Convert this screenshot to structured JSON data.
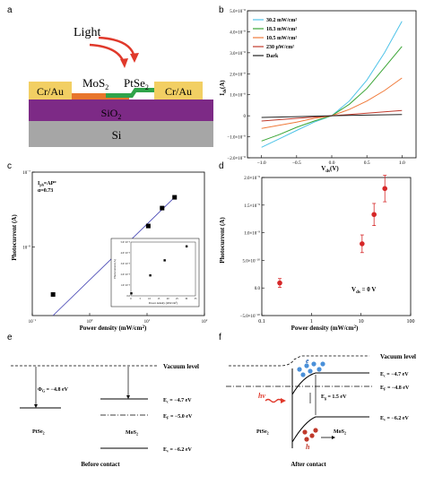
{
  "panels": {
    "a": {
      "label": "a",
      "light_label": "Light",
      "mos2_label": "MoS",
      "mos2_sub": "2",
      "ptse2_label": "PtSe",
      "ptse2_sub": "2",
      "left_electrode": "Cr/Au",
      "right_electrode": "Cr/Au",
      "sio2_label": "SiO",
      "sio2_sub": "2",
      "si_label": "Si",
      "colors": {
        "electrode": "#f2cf63",
        "mos2": "#e8762c",
        "ptse2": "#2fa34a",
        "sio2": "#7d2a86",
        "si": "#a6a6a6",
        "light": "#e0392b"
      }
    },
    "b": {
      "label": "b",
      "ylabel": "I",
      "ylabel_sub": "ds",
      "ylabel_unit": "(A)",
      "xlabel": "V",
      "xlabel_sub": "ds",
      "xlabel_unit": "(V)",
      "ytick_exp_labels": [
        "5.0×10",
        "4.0×10",
        "3.0×10",
        "2.0×10",
        "1.0×10",
        "0",
        "−1.0×10",
        "−2.0×10"
      ],
      "ytick_exp": "−6",
      "xtick_labels": [
        "−1.0",
        "−0.5",
        "0.0",
        "0.5",
        "1.0"
      ]
    },
    "c": {
      "label": "c",
      "ylabel": "Photocurrent (A)",
      "xlabel": "Power density (mW/cm",
      "xlabel_tail": "2",
      "xlabel_end": ")",
      "annot1": "I",
      "annot1_sub": "ph",
      "annot1_rest": "=AP",
      "annot1_sup": "α",
      "annot2": "α=0.73",
      "ytick_labels": [
        "10",
        "10"
      ],
      "ytick_sups": [
        "−7",
        "−8"
      ],
      "xtick_labels": [
        "10",
        "10",
        "10",
        "10"
      ],
      "xtick_sups": [
        "−1",
        "0",
        "1",
        "2"
      ],
      "inset": {
        "xlabel": "Power density (mW/cm²)",
        "ylabel": "Photocurrent (A)",
        "xtick_labels": [
          "0",
          "5",
          "10",
          "15",
          "20",
          "25",
          "30",
          "35"
        ],
        "ytick_labels": [
          "5.0×10⁻⁸",
          "4.0×10⁻⁸",
          "3.0×10⁻⁸",
          "2.0×10⁻⁸",
          "1.0×10⁻⁸",
          "0.0"
        ]
      }
    },
    "d": {
      "label": "d",
      "ylabel": "Photocurrent (A)",
      "xlabel": "Power density (mW/cm",
      "xlabel_tail": "2",
      "xlabel_end": ")",
      "vds_label": "V",
      "vds_sub": "ds",
      "vds_value": " = 0 V",
      "ytick_labels": [
        "2.0×10",
        "1.5×10",
        "1.0×10",
        "5.0×10",
        "0.0",
        "−5.0×10"
      ],
      "ytick_sups": [
        "−9",
        "−9",
        "−9",
        "−10",
        "",
        "−10"
      ],
      "xtick_labels": [
        "0.1",
        "1",
        "10",
        "100"
      ]
    },
    "e": {
      "label": "e",
      "vacuum_label": "Vacuum level",
      "phi_label": "Φ",
      "phi_sub": "G",
      "phi_value": " = −4.8 eV",
      "ec_label": "E",
      "ec_sub": "c",
      "ec_value": " = −4.7 eV",
      "ef_label": "E",
      "ef_sub": "F",
      "ef_value": " = −5.0 eV",
      "ev_label": "E",
      "ev_sub": "v",
      "ev_value": " = −6.2 eV",
      "ptse2_label": "PtSe",
      "ptse2_sub": "2",
      "mos2_label": "MoS",
      "mos2_sub": "2",
      "caption": "Before contact"
    },
    "f": {
      "label": "f",
      "vacuum_label": "Vacuum level",
      "ec_label": "E",
      "ec_sub": "c",
      "ec_value": " = −4.7 eV",
      "ef_label": "E",
      "ef_sub": "F",
      "ef_value": " = −4.8 eV",
      "ev_label": "E",
      "ev_sub": "v",
      "ev_value": " = −6.2 eV",
      "eg_label": "E",
      "eg_sub": "g",
      "eg_value": " = 1.5 eV",
      "e_label": "e",
      "h_label": "h",
      "hv_label": "hν",
      "ptse2_label": "PtSe",
      "ptse2_sub": "2",
      "mos2_label": "MoS",
      "mos2_sub": "2",
      "caption": "After contact"
    }
  },
  "chart_data": [
    {
      "panel": "b",
      "type": "line",
      "ylabel": "Ids(A)",
      "xlabel": "Vds(V)",
      "xlim": [
        -1.2,
        1.2
      ],
      "ylim": [
        -2e-06,
        5e-06
      ],
      "legend_position": "top-left",
      "series": [
        {
          "name": "30.2 mW/cm²",
          "color": "#4fc3e8",
          "x": [
            -1.0,
            -0.75,
            -0.5,
            -0.25,
            0,
            0.25,
            0.5,
            0.75,
            1.0
          ],
          "y": [
            -1.5e-06,
            -1.1e-06,
            -7e-07,
            -3e-07,
            0,
            7e-07,
            1.7e-06,
            3e-06,
            4.5e-06
          ]
        },
        {
          "name": "18.3 mW/cm²",
          "color": "#3aa535",
          "x": [
            -1.0,
            -0.75,
            -0.5,
            -0.25,
            0,
            0.25,
            0.5,
            0.75,
            1.0
          ],
          "y": [
            -1.2e-06,
            -9e-07,
            -5.5e-07,
            -2.5e-07,
            0,
            5.5e-07,
            1.3e-06,
            2.3e-06,
            3.3e-06
          ]
        },
        {
          "name": "10.5 mW/cm²",
          "color": "#f07a3a",
          "x": [
            -1.0,
            -0.75,
            -0.5,
            -0.25,
            0,
            0.25,
            0.5,
            0.75,
            1.0
          ],
          "y": [
            -6e-07,
            -4.5e-07,
            -3e-07,
            -1.2e-07,
            0,
            3e-07,
            7e-07,
            1.2e-06,
            1.8e-06
          ]
        },
        {
          "name": "230 μW/cm²",
          "color": "#c0392b",
          "x": [
            -1.0,
            -0.5,
            0,
            0.5,
            1.0
          ],
          "y": [
            -2.5e-07,
            -1.2e-07,
            0,
            1.2e-07,
            2.5e-07
          ]
        },
        {
          "name": "Dark",
          "color": "#222222",
          "x": [
            -1.0,
            -0.5,
            0,
            0.5,
            1.0
          ],
          "y": [
            -8e-08,
            -4e-08,
            0,
            3e-08,
            6e-08
          ]
        }
      ]
    },
    {
      "panel": "c",
      "type": "scatter",
      "ylabel": "Photocurrent (A)",
      "xlabel": "Power density (mW/cm²)",
      "xscale": "log",
      "yscale": "log",
      "xlim": [
        0.1,
        100
      ],
      "ylim": [
        1.2e-09,
        1e-07
      ],
      "points": {
        "x": [
          0.23,
          10.5,
          18.3,
          30.2
        ],
        "y": [
          2.3e-09,
          1.9e-08,
          3.3e-08,
          4.6e-08
        ]
      },
      "fit_line": {
        "x": [
          0.23,
          30.2
        ],
        "y": [
          1.2e-09,
          4.6e-08
        ]
      },
      "inset": {
        "type": "scatter",
        "xlim": [
          0,
          35
        ],
        "ylim": [
          0,
          5e-08
        ],
        "x": [
          0.23,
          10.5,
          18.3,
          30.2
        ],
        "y": [
          2.3e-09,
          1.9e-08,
          3.3e-08,
          4.6e-08
        ]
      }
    },
    {
      "panel": "d",
      "type": "scatter",
      "ylabel": "Photocurrent (A)",
      "xlabel": "Power density (mW/cm²)",
      "xscale": "log",
      "xlim": [
        0.1,
        100
      ],
      "ylim": [
        -5e-10,
        2e-09
      ],
      "points": {
        "x": [
          0.23,
          10.5,
          18.3,
          30.2
        ],
        "y": [
          9e-11,
          8e-10,
          1.33e-09,
          1.8e-09
        ],
        "err": [
          8e-11,
          1.6e-10,
          2e-10,
          2.4e-10
        ]
      }
    }
  ]
}
